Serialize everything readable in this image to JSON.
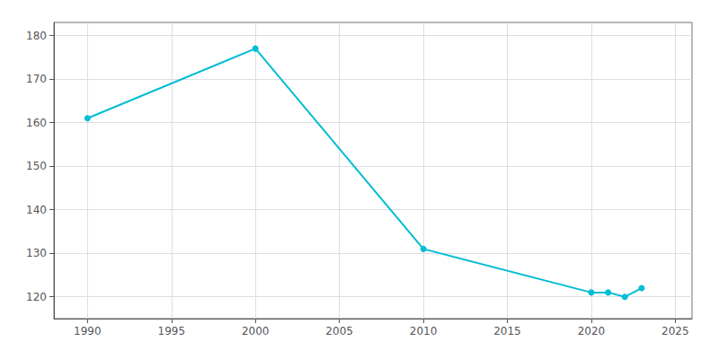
{
  "chart_data": {
    "type": "line",
    "x": [
      1990,
      2000,
      2010,
      2020,
      2021,
      2022,
      2023
    ],
    "values": [
      161,
      177,
      131,
      121,
      121,
      120,
      122
    ],
    "color": "#00BCD4",
    "marker": "circle",
    "xlim": [
      1988,
      2026
    ],
    "ylim": [
      115,
      183
    ],
    "xticks": [
      1990,
      1995,
      2000,
      2005,
      2010,
      2015,
      2020,
      2025
    ],
    "yticks": [
      120,
      130,
      140,
      150,
      160,
      170,
      180
    ],
    "grid": true
  }
}
